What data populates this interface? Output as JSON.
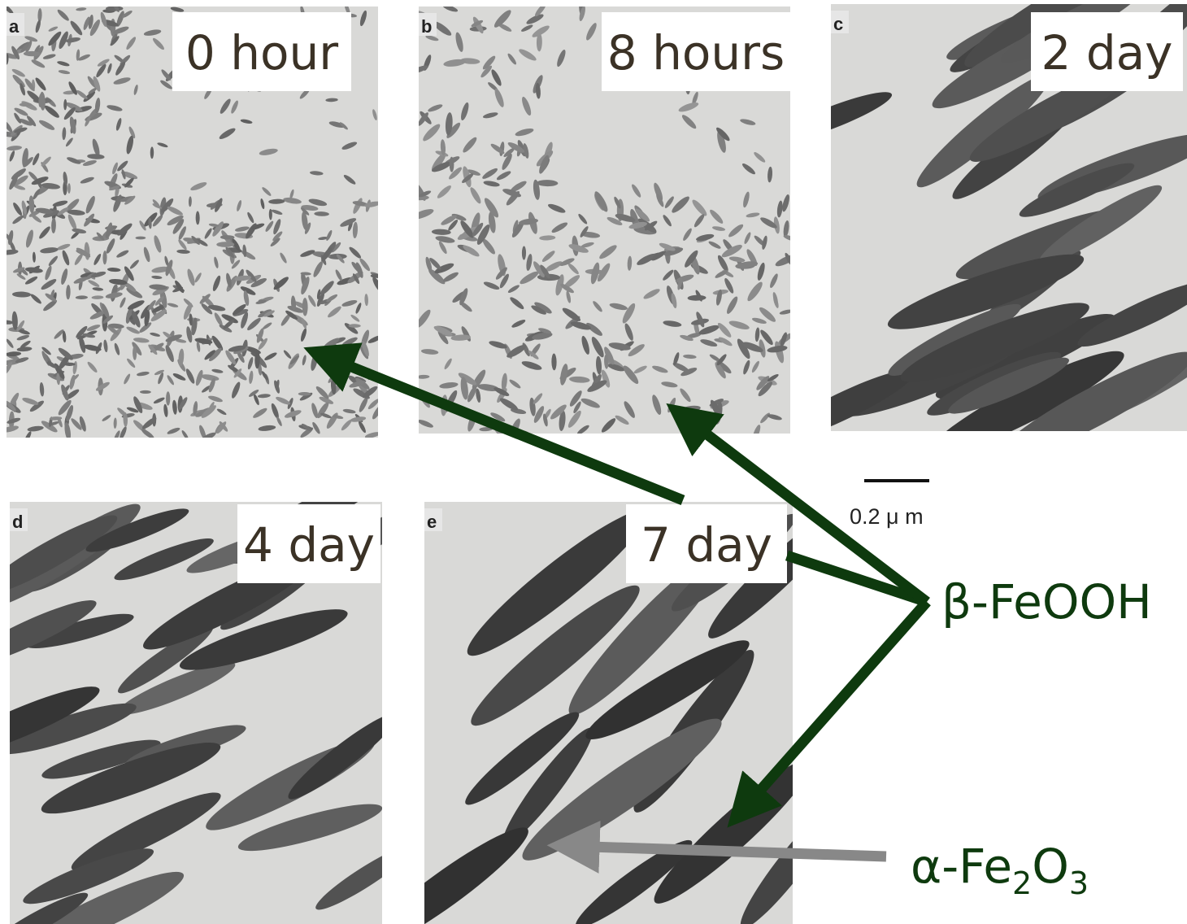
{
  "panels": [
    {
      "letter": "a",
      "label": "0 hour"
    },
    {
      "letter": "b",
      "label": "8 hours"
    },
    {
      "letter": "c",
      "label": "2 day"
    },
    {
      "letter": "d",
      "label": "4 day"
    },
    {
      "letter": "e",
      "label": "7 day"
    }
  ],
  "scale_bar": {
    "label": "0.2 μ m"
  },
  "annotations": {
    "beta": "β-FeOOH",
    "alpha": {
      "parts": [
        "α-Fe",
        "2",
        "O",
        "3"
      ]
    }
  }
}
